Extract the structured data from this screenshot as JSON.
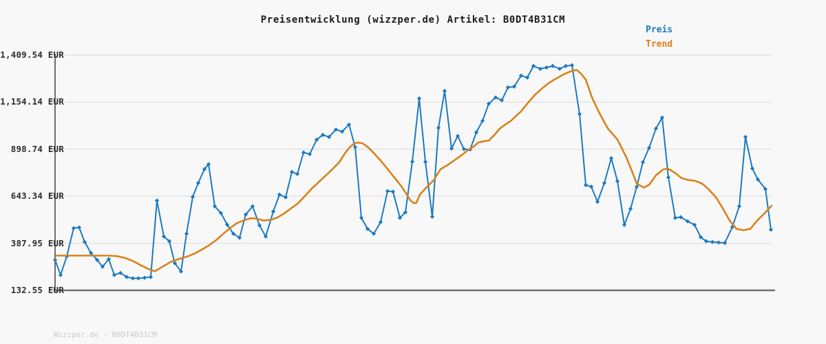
{
  "chart": {
    "title": "Preisentwicklung (wizzper.de) Artikel: B0DT4B31CM",
    "legend": {
      "preis": "Preis",
      "trend": "Trend"
    }
  },
  "footer": {
    "watermark": "Wizzper.de - B0DT4B31CM"
  },
  "colors": {
    "preis_blue": "#1b7ac1",
    "trend_orange": "#d9811a",
    "grid": "#e2e2e2",
    "axis": "#6e6e6e",
    "background": "#f8f8f8",
    "watermark_gray": "#c9c9c9"
  },
  "chart_data": {
    "type": "line",
    "title": "Preisentwicklung (wizzper.de) Artikel: B0DT4B31CM",
    "currency": "EUR",
    "ylim": [
      132.55,
      1409.54
    ],
    "grid": true,
    "legend_position": "top-right",
    "x_tick_labels": "none",
    "y_ticks": [
      {
        "label": "1,409.54 EUR",
        "value": 1409.54
      },
      {
        "label": "1,154.14 EUR",
        "value": 1154.14
      },
      {
        "label": "898.74 EUR",
        "value": 898.74
      },
      {
        "label": "643.34 EUR",
        "value": 643.34
      },
      {
        "label": "387.95 EUR",
        "value": 387.95
      },
      {
        "label": "132.55 EUR",
        "value": 132.55
      }
    ],
    "series": [
      {
        "name": "Preis",
        "color": "#1b7ac1",
        "marker": "diamond",
        "line_width": 2,
        "points": [
          [
            80,
            298
          ],
          [
            88,
            216
          ],
          [
            97,
            317
          ],
          [
            107,
            470
          ],
          [
            115,
            474
          ],
          [
            123,
            395
          ],
          [
            132,
            336
          ],
          [
            141,
            298
          ],
          [
            149,
            261
          ],
          [
            158,
            302
          ],
          [
            166,
            216
          ],
          [
            175,
            227
          ],
          [
            184,
            205
          ],
          [
            193,
            198
          ],
          [
            201,
            198
          ],
          [
            210,
            201
          ],
          [
            219,
            205
          ],
          [
            228,
            620
          ],
          [
            238,
            425
          ],
          [
            246,
            399
          ],
          [
            254,
            280
          ],
          [
            263,
            235
          ],
          [
            271,
            440
          ],
          [
            280,
            640
          ],
          [
            288,
            715
          ],
          [
            297,
            790
          ],
          [
            303,
            817
          ],
          [
            312,
            589
          ],
          [
            321,
            552
          ],
          [
            330,
            489
          ],
          [
            339,
            440
          ],
          [
            348,
            418
          ],
          [
            357,
            544
          ],
          [
            367,
            589
          ],
          [
            377,
            485
          ],
          [
            386,
            425
          ],
          [
            397,
            560
          ],
          [
            406,
            652
          ],
          [
            415,
            638
          ],
          [
            424,
            775
          ],
          [
            432,
            764
          ],
          [
            441,
            881
          ],
          [
            450,
            872
          ],
          [
            460,
            950
          ],
          [
            469,
            976
          ],
          [
            478,
            965
          ],
          [
            488,
            1005
          ],
          [
            497,
            994
          ],
          [
            507,
            1032
          ],
          [
            516,
            910
          ],
          [
            525,
            526
          ],
          [
            534,
            466
          ],
          [
            543,
            440
          ],
          [
            553,
            503
          ],
          [
            563,
            671
          ],
          [
            571,
            668
          ],
          [
            581,
            526
          ],
          [
            589,
            556
          ],
          [
            599,
            831
          ],
          [
            609,
            1174
          ],
          [
            618,
            830
          ],
          [
            628,
            532
          ],
          [
            637,
            1014
          ],
          [
            646,
            1215
          ],
          [
            656,
            902
          ],
          [
            665,
            970
          ],
          [
            674,
            899
          ],
          [
            683,
            897
          ],
          [
            692,
            990
          ],
          [
            701,
            1052
          ],
          [
            710,
            1145
          ],
          [
            720,
            1179
          ],
          [
            729,
            1164
          ],
          [
            738,
            1234
          ],
          [
            747,
            1238
          ],
          [
            757,
            1298
          ],
          [
            766,
            1287
          ],
          [
            775,
            1350
          ],
          [
            785,
            1335
          ],
          [
            794,
            1342
          ],
          [
            803,
            1350
          ],
          [
            813,
            1335
          ],
          [
            822,
            1350
          ],
          [
            831,
            1354
          ],
          [
            842,
            1089
          ],
          [
            851,
            704
          ],
          [
            859,
            695
          ],
          [
            868,
            613
          ],
          [
            878,
            715
          ],
          [
            888,
            850
          ],
          [
            897,
            725
          ],
          [
            907,
            488
          ],
          [
            916,
            575
          ],
          [
            925,
            694
          ],
          [
            934,
            828
          ],
          [
            943,
            906
          ],
          [
            953,
            1011
          ],
          [
            962,
            1070
          ],
          [
            971,
            746
          ],
          [
            981,
            526
          ],
          [
            989,
            530
          ],
          [
            999,
            507
          ],
          [
            1009,
            488
          ],
          [
            1018,
            421
          ],
          [
            1026,
            399
          ],
          [
            1035,
            395
          ],
          [
            1044,
            392
          ],
          [
            1053,
            390
          ],
          [
            1064,
            477
          ],
          [
            1074,
            589
          ],
          [
            1083,
            965
          ],
          [
            1093,
            794
          ],
          [
            1101,
            734
          ],
          [
            1112,
            682
          ],
          [
            1120,
            462
          ]
        ]
      },
      {
        "name": "Trend",
        "color": "#d9811a",
        "marker": "none",
        "line_width": 2.6,
        "points": [
          [
            80,
            321
          ],
          [
            100,
            321
          ],
          [
            120,
            321
          ],
          [
            140,
            321
          ],
          [
            158,
            321
          ],
          [
            170,
            318
          ],
          [
            182,
            308
          ],
          [
            194,
            290
          ],
          [
            206,
            266
          ],
          [
            216,
            248
          ],
          [
            225,
            236
          ],
          [
            235,
            258
          ],
          [
            248,
            287
          ],
          [
            260,
            303
          ],
          [
            272,
            316
          ],
          [
            283,
            333
          ],
          [
            294,
            355
          ],
          [
            304,
            378
          ],
          [
            314,
            405
          ],
          [
            324,
            438
          ],
          [
            334,
            470
          ],
          [
            344,
            497
          ],
          [
            354,
            512
          ],
          [
            364,
            524
          ],
          [
            374,
            521
          ],
          [
            383,
            511
          ],
          [
            393,
            515
          ],
          [
            403,
            528
          ],
          [
            413,
            550
          ],
          [
            423,
            578
          ],
          [
            433,
            605
          ],
          [
            443,
            645
          ],
          [
            453,
            685
          ],
          [
            463,
            720
          ],
          [
            473,
            755
          ],
          [
            483,
            790
          ],
          [
            493,
            828
          ],
          [
            500,
            870
          ],
          [
            507,
            905
          ],
          [
            513,
            925
          ],
          [
            519,
            935
          ],
          [
            527,
            930
          ],
          [
            535,
            908
          ],
          [
            543,
            878
          ],
          [
            551,
            845
          ],
          [
            559,
            810
          ],
          [
            567,
            772
          ],
          [
            575,
            735
          ],
          [
            583,
            698
          ],
          [
            590,
            658
          ],
          [
            596,
            622
          ],
          [
            601,
            606
          ],
          [
            605,
            608
          ],
          [
            610,
            652
          ],
          [
            620,
            693
          ],
          [
            630,
            730
          ],
          [
            640,
            790
          ],
          [
            650,
            812
          ],
          [
            660,
            838
          ],
          [
            670,
            864
          ],
          [
            680,
            894
          ],
          [
            688,
            913
          ],
          [
            695,
            935
          ],
          [
            703,
            942
          ],
          [
            710,
            945
          ],
          [
            718,
            975
          ],
          [
            726,
            1010
          ],
          [
            734,
            1032
          ],
          [
            742,
            1052
          ],
          [
            757,
            1104
          ],
          [
            767,
            1150
          ],
          [
            777,
            1193
          ],
          [
            787,
            1227
          ],
          [
            797,
            1257
          ],
          [
            807,
            1280
          ],
          [
            817,
            1301
          ],
          [
            825,
            1315
          ],
          [
            832,
            1325
          ],
          [
            838,
            1328
          ],
          [
            845,
            1305
          ],
          [
            851,
            1276
          ],
          [
            860,
            1180
          ],
          [
            870,
            1100
          ],
          [
            883,
            1011
          ],
          [
            897,
            951
          ],
          [
            910,
            854
          ],
          [
            918,
            780
          ],
          [
            925,
            712
          ],
          [
            935,
            690
          ],
          [
            943,
            705
          ],
          [
            953,
            757
          ],
          [
            963,
            788
          ],
          [
            970,
            794
          ],
          [
            980,
            772
          ],
          [
            990,
            742
          ],
          [
            1000,
            731
          ],
          [
            1010,
            727
          ],
          [
            1020,
            712
          ],
          [
            1030,
            679
          ],
          [
            1040,
            638
          ],
          [
            1050,
            578
          ],
          [
            1060,
            511
          ],
          [
            1070,
            466
          ],
          [
            1080,
            459
          ],
          [
            1090,
            466
          ],
          [
            1100,
            511
          ],
          [
            1110,
            548
          ],
          [
            1121,
            592
          ]
        ]
      }
    ]
  }
}
